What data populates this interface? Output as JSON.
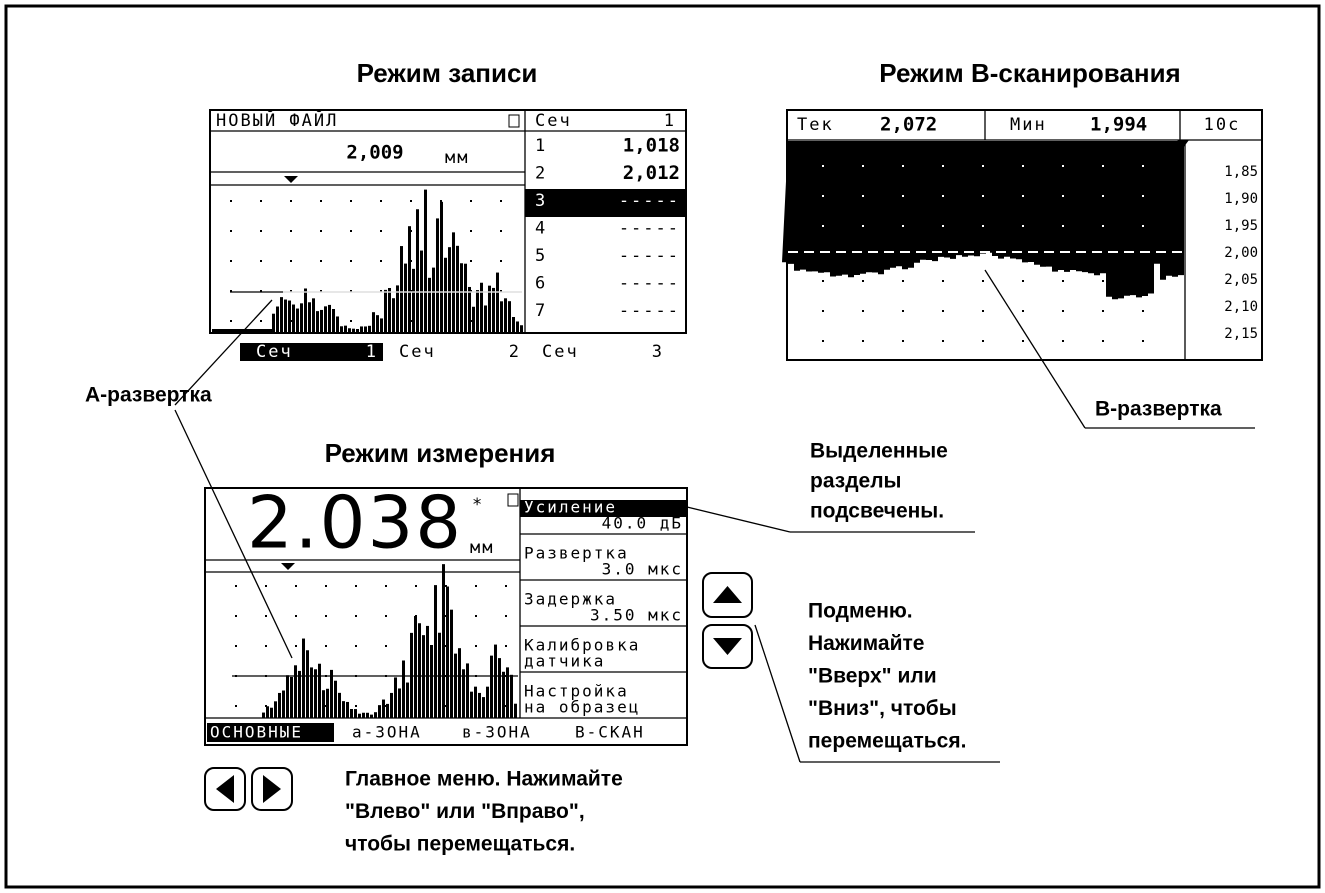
{
  "record_mode": {
    "title": "Режим записи",
    "file": "НОВЫЙ ФАЙЛ",
    "reading": "2,009",
    "unit": "мм",
    "table_header": [
      "Сеч",
      "1"
    ],
    "rows": [
      [
        "1",
        "1,018"
      ],
      [
        "2",
        "2,012"
      ],
      [
        "3",
        "-----"
      ],
      [
        "4",
        "-----"
      ],
      [
        "5",
        "-----"
      ],
      [
        "6",
        "-----"
      ],
      [
        "7",
        "-----"
      ]
    ],
    "tabs": [
      [
        "Сеч",
        "1"
      ],
      [
        "Сеч",
        "2"
      ],
      [
        "Сеч",
        "3"
      ]
    ]
  },
  "bscan_mode": {
    "title": "Режим B-сканирования",
    "current_label": "Тек",
    "current": "2,072",
    "min_label": "Мин",
    "min": "1,994",
    "time": "10с",
    "scale": [
      "1,85",
      "1,90",
      "1,95",
      "2,00",
      "2,05",
      "2,10",
      "2,15"
    ]
  },
  "measure_mode": {
    "title": "Режим измерения",
    "reading": "2.038",
    "star": "*",
    "unit": "мм",
    "menu": [
      [
        "Усиление",
        "40.0 дБ"
      ],
      [
        "Развертка",
        "3.0 мкс"
      ],
      [
        "Задержка",
        "3.50 мкс"
      ],
      [
        "Калибровка",
        "датчика"
      ],
      [
        "Настройка",
        "на образец"
      ]
    ],
    "tabs": [
      "ОСНОВНЫЕ",
      "а-ЗОНА",
      "в-ЗОНА",
      "В-СКАН"
    ]
  },
  "annotations": {
    "a_scan": "А-развертка",
    "b_scan": "В-развертка",
    "highlighted": [
      "Выделенные",
      "разделы",
      "подсвечены."
    ],
    "submenu": [
      "Подменю.",
      "Нажимайте",
      "\"Вверх\" или",
      "\"Вниз\", чтобы",
      "перемещаться."
    ],
    "main_menu": [
      "Главное меню. Нажимайте",
      "\"Влево\" или \"Вправо\",",
      "чтобы перемещаться."
    ]
  }
}
